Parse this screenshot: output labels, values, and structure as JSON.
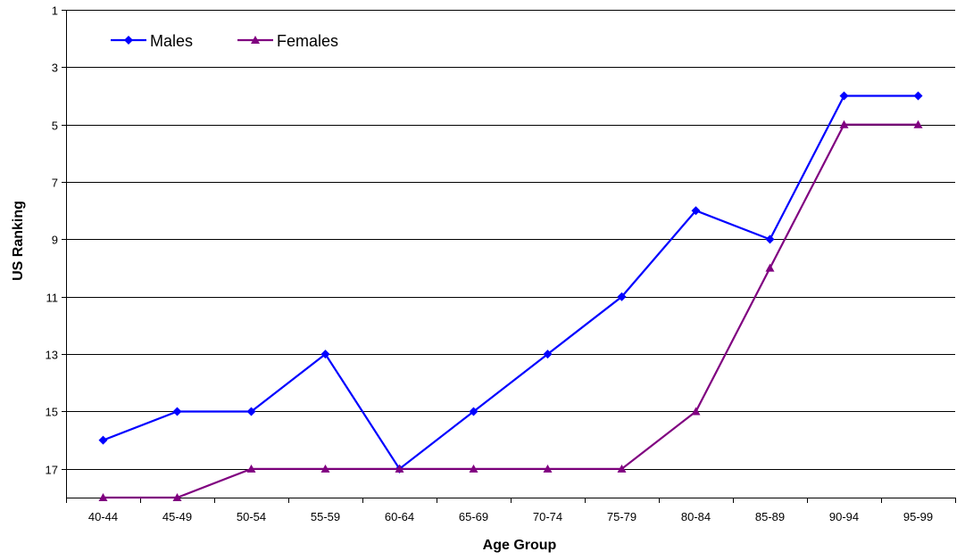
{
  "chart_data": {
    "type": "line",
    "title": "",
    "xlabel": "Age Group",
    "ylabel": "US Ranking",
    "categories": [
      "40-44",
      "45-49",
      "50-54",
      "55-59",
      "60-64",
      "65-69",
      "70-74",
      "75-79",
      "80-84",
      "85-89",
      "90-94",
      "95-99"
    ],
    "y_axis": {
      "inverted": true,
      "ylim": [
        1,
        18
      ],
      "ticks": [
        1,
        3,
        5,
        7,
        9,
        11,
        13,
        15,
        17
      ]
    },
    "grid": "horizontal",
    "legend_position": "top-left",
    "series": [
      {
        "name": "Males",
        "color": "#0000FF",
        "marker": "diamond",
        "values": [
          16,
          15,
          15,
          13,
          17,
          15,
          13,
          11,
          8,
          9,
          4,
          4
        ]
      },
      {
        "name": "Females",
        "color": "#800080",
        "marker": "triangle",
        "values": [
          18,
          18,
          17,
          17,
          17,
          17,
          17,
          17,
          15,
          10,
          5,
          5
        ]
      }
    ]
  }
}
